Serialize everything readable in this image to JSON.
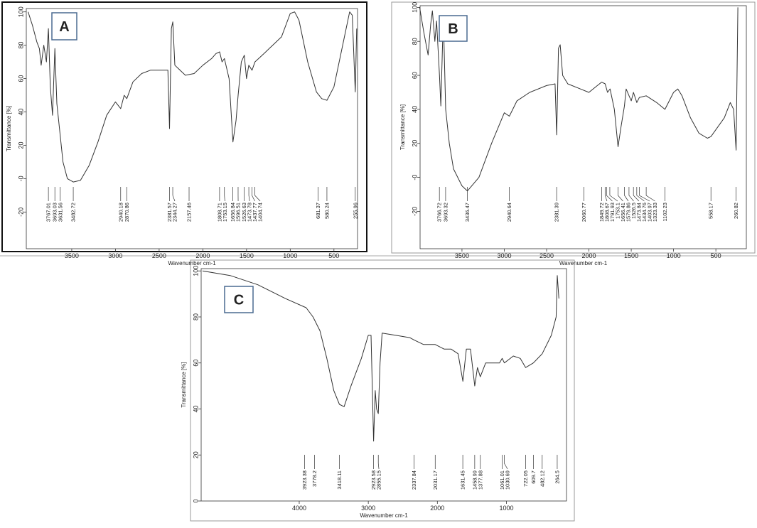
{
  "chart_data": [
    {
      "type": "line",
      "title": "A",
      "xlabel": "Wavenumber cm-1",
      "ylabel": "Transmittance [%]",
      "xlim": [
        4020,
        230
      ],
      "ylim": [
        -42,
        102
      ],
      "xticks": [
        3500,
        3000,
        2500,
        2000,
        1500,
        1000,
        500
      ],
      "yticks": [
        -20,
        {
          "value": 0,
          "label": "-0"
        },
        20,
        40,
        60,
        80,
        100
      ],
      "color": "#333333",
      "x": [
        4000,
        3950,
        3900,
        3870,
        3850,
        3820,
        3790,
        3767,
        3745,
        3720,
        3693,
        3670,
        3640,
        3600,
        3550,
        3482,
        3400,
        3300,
        3200,
        3100,
        3000,
        2940,
        2900,
        2870,
        2800,
        2700,
        2600,
        2400,
        2381,
        2360,
        2344,
        2320,
        2200,
        2100,
        2000,
        1900,
        1850,
        1808,
        1780,
        1753,
        1700,
        1656,
        1620,
        1596,
        1560,
        1526,
        1500,
        1474,
        1437,
        1404,
        1300,
        1200,
        1100,
        1000,
        950,
        900,
        800,
        700,
        640,
        580,
        500,
        400,
        320,
        290,
        256,
        240
      ],
      "values": [
        100,
        92,
        82,
        78,
        68,
        80,
        70,
        90,
        55,
        38,
        78,
        45,
        30,
        10,
        0,
        -2,
        -1,
        8,
        22,
        38,
        46,
        42,
        50,
        48,
        58,
        63,
        65,
        65,
        30,
        90,
        94,
        68,
        62,
        63,
        68,
        72,
        75,
        76,
        70,
        72,
        60,
        22,
        35,
        50,
        70,
        74,
        60,
        68,
        65,
        70,
        75,
        80,
        85,
        99,
        100,
        95,
        70,
        52,
        48,
        47,
        55,
        80,
        100,
        98,
        52,
        90
      ],
      "peaks": [
        3767.01,
        3693.03,
        3631.56,
        3482.72,
        2940.18,
        2870.86,
        2381.57,
        2344.27,
        2157.46,
        1808.71,
        1753.15,
        1656.84,
        1596.51,
        1526.63,
        1473.78,
        1437.77,
        1404.74,
        681.37,
        580.24,
        255.96
      ]
    },
    {
      "type": "line",
      "title": "B",
      "xlabel": "Wavenumber cm-1",
      "ylabel": "Transmittance [%]",
      "xlim": [
        3995,
        140
      ],
      "ylim": [
        -42,
        101
      ],
      "xticks": [
        3500,
        3000,
        2500,
        2000,
        1500,
        1000,
        500
      ],
      "yticks": [
        -20,
        {
          "value": 0,
          "label": "-0"
        },
        20,
        40,
        60,
        80,
        100
      ],
      "color": "#333333",
      "x": [
        4000,
        3950,
        3900,
        3870,
        3850,
        3820,
        3800,
        3766,
        3750,
        3720,
        3693,
        3650,
        3600,
        3500,
        3436,
        3300,
        3150,
        3000,
        2940,
        2850,
        2700,
        2500,
        2400,
        2381,
        2360,
        2340,
        2310,
        2250,
        2100,
        2000,
        1900,
        1850,
        1808,
        1780,
        1750,
        1700,
        1656,
        1620,
        1580,
        1560,
        1526,
        1500,
        1474,
        1434,
        1404,
        1323,
        1200,
        1102,
        1000,
        950,
        900,
        800,
        700,
        600,
        558,
        400,
        330,
        290,
        261,
        240
      ],
      "values": [
        100,
        85,
        72,
        90,
        98,
        80,
        92,
        60,
        42,
        95,
        40,
        20,
        5,
        -5,
        -8,
        0,
        20,
        38,
        36,
        45,
        50,
        54,
        55,
        25,
        76,
        78,
        60,
        55,
        52,
        50,
        54,
        56,
        55,
        50,
        52,
        40,
        18,
        30,
        42,
        52,
        48,
        45,
        50,
        44,
        47,
        48,
        44,
        40,
        50,
        52,
        48,
        35,
        26,
        23,
        24,
        35,
        44,
        40,
        16,
        100
      ],
      "peaks": [
        3766.72,
        3693.32,
        3436.47,
        2940.64,
        2381.39,
        2060.77,
        1849.72,
        1808.67,
        1791.93,
        1753.1,
        1656.41,
        1579.86,
        1526.5,
        1473.84,
        1434.76,
        1403.97,
        1323.33,
        1102.23,
        558.17,
        260.82
      ]
    },
    {
      "type": "line",
      "title": "C",
      "xlabel": "Wavenumber cm-1",
      "ylabel": "Transmittance [%]",
      "xlim": [
        5420,
        130
      ],
      "ylim": [
        0,
        101
      ],
      "xticks": [
        4000,
        3000,
        2000,
        1000
      ],
      "yticks": [
        0,
        20,
        40,
        60,
        80,
        100
      ],
      "color": "#333333",
      "x": [
        5400,
        5000,
        4600,
        4200,
        3900,
        3800,
        3700,
        3600,
        3500,
        3418,
        3350,
        3250,
        3100,
        3000,
        2960,
        2923,
        2900,
        2880,
        2855,
        2830,
        2800,
        2600,
        2400,
        2337,
        2200,
        2031,
        1900,
        1800,
        1700,
        1631,
        1580,
        1520,
        1459,
        1420,
        1378,
        1300,
        1100,
        1061,
        1030,
        900,
        800,
        722,
        610,
        482,
        350,
        280,
        264,
        240
      ],
      "values": [
        100,
        98,
        94,
        88,
        84,
        80,
        74,
        62,
        48,
        42,
        41,
        50,
        62,
        72,
        72,
        26,
        48,
        40,
        38,
        60,
        73,
        72,
        71,
        70,
        68,
        68,
        66,
        66,
        64,
        52,
        66,
        66,
        50,
        58,
        54,
        60,
        60,
        62,
        60,
        63,
        62,
        58,
        60,
        64,
        72,
        80,
        98,
        88
      ],
      "peaks": [
        3923.38,
        3778.2,
        3418.11,
        2923.58,
        2855.15,
        2337.84,
        2031.17,
        1631.45,
        1458.99,
        1377.88,
        1061.01,
        1030.69,
        722.05,
        609.7,
        482.12,
        264.5
      ]
    }
  ]
}
